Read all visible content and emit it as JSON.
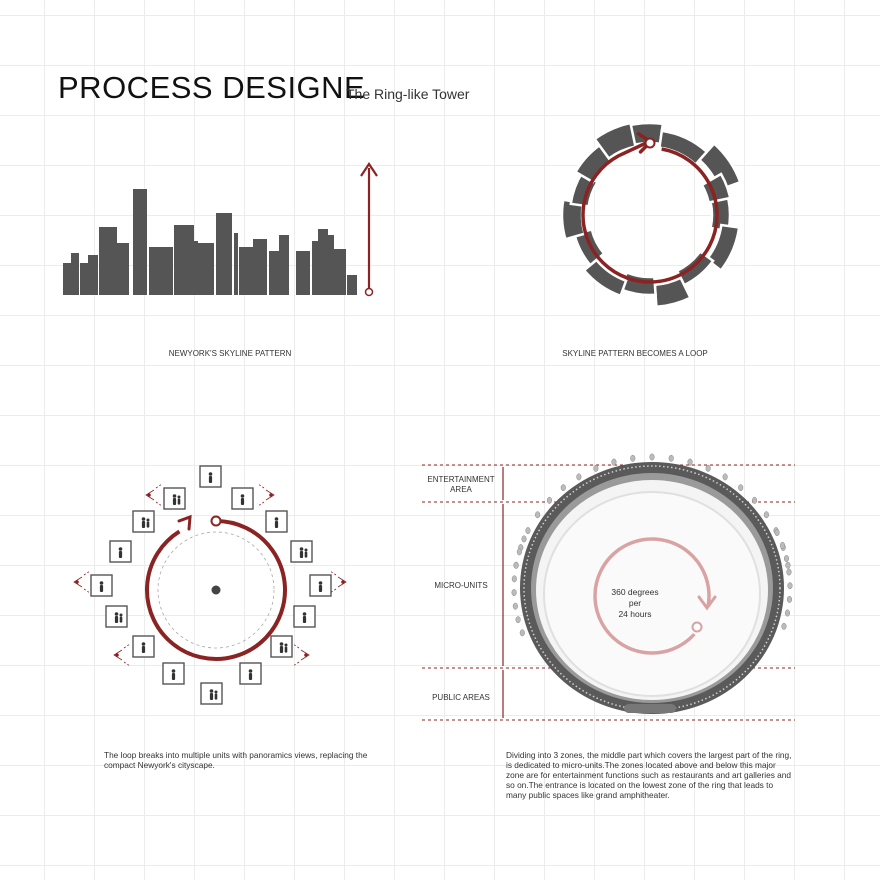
{
  "header": {
    "title": "PROCESS DESIGNE",
    "subtitle": "The Ring-like Tower"
  },
  "panels": {
    "skyline": {
      "caption": "NEWYORK'S SKYLINE PATTERN"
    },
    "loop": {
      "caption": "SKYLINE PATTERN BECOMES A LOOP"
    },
    "units": {
      "description": "The loop breaks into multiple units with panoramics views, replacing the compact Newyork's cityscape."
    },
    "tower": {
      "zones": {
        "entertainment_line1": "ENTERTAINMENT",
        "entertainment_line2": "AREA",
        "micro_units": "MICRO-UNITS",
        "public_areas": "PUBLIC AREAS"
      },
      "rotation": {
        "line1": "360 degrees",
        "line2": "per",
        "line3": "24 hours"
      },
      "description": "Dividing into 3  zones, the middle part which covers the largest part of the ring, is dedicated to micro-units.The zones located above and below this major zone are for entertainment functions such as restaurants and art galleries and so on.The entrance is located on the lowest zone of the ring that  leads to many public spaces like grand amphitheater."
    }
  },
  "colors": {
    "accent": "#8b2323",
    "accent_light": "#d9a3a3",
    "building": "#555555",
    "ring": "#4f4f4f"
  }
}
